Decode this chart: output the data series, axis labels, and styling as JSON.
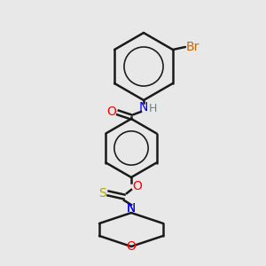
{
  "bg_color": "#e8e8e8",
  "bond_color": "#1a1a1a",
  "bond_lw": 1.8,
  "aromatic_lw": 1.0,
  "atom_colors": {
    "O": "#ff0000",
    "N": "#0000ff",
    "H": "#4a9090",
    "S": "#aaaa00",
    "Br": "#cc6600",
    "C": "#1a1a1a"
  },
  "font_size": 9
}
